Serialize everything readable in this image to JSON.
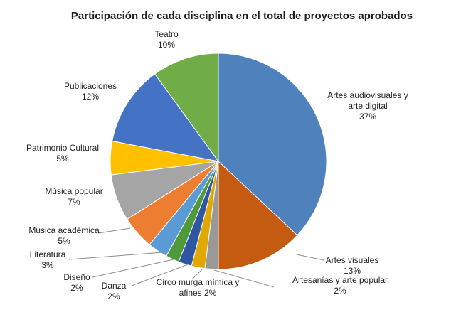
{
  "chart_data": {
    "type": "pie",
    "title": "Participación de cada disciplina en el total de proyectos aprobados",
    "start": "12 o'clock",
    "direction": "clockwise",
    "legend": "none",
    "slices": [
      {
        "lines": [
          "Artes audiovisuales y",
          "arte digital",
          "37%"
        ],
        "value": 37,
        "color": "#4f81bd"
      },
      {
        "lines": [
          "Artes visuales",
          "13%"
        ],
        "value": 13,
        "color": "#c55a11"
      },
      {
        "lines": [
          "Artesanías y arte popular",
          "2%"
        ],
        "value": 2,
        "color": "#999999"
      },
      {
        "lines": [
          "Circo murga mímica y",
          "afines 2%"
        ],
        "value": 2,
        "color": "#e0a800"
      },
      {
        "lines": [
          "Danza",
          "2%"
        ],
        "value": 2,
        "color": "#2f55a3"
      },
      {
        "lines": [
          "Diseño",
          "2%"
        ],
        "value": 2,
        "color": "#4e9a3a"
      },
      {
        "lines": [
          "Literatura",
          "3%"
        ],
        "value": 3,
        "color": "#5b9bd5"
      },
      {
        "lines": [
          "Música académica",
          "5%"
        ],
        "value": 5,
        "color": "#ed7d31"
      },
      {
        "lines": [
          "Música popular",
          "7%"
        ],
        "value": 7,
        "color": "#a5a5a5"
      },
      {
        "lines": [
          "Patrimonio Cultural",
          "5%"
        ],
        "value": 5,
        "color": "#ffc000"
      },
      {
        "lines": [
          "Publicaciones",
          "12%"
        ],
        "value": 12,
        "color": "#4472c4"
      },
      {
        "lines": [
          "Teatro",
          "10%"
        ],
        "value": 10,
        "color": "#70ad47"
      }
    ]
  }
}
